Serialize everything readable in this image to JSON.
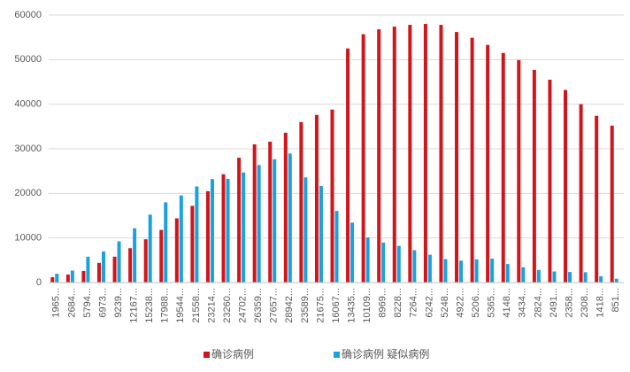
{
  "chart_data": {
    "type": "bar",
    "categories": [
      "1965...",
      "2684...",
      "5794...",
      "6973...",
      "9239...",
      "12167...",
      "15238...",
      "17988...",
      "19544...",
      "21558...",
      "23214...",
      "23260...",
      "24702...",
      "26359...",
      "27657...",
      "28942...",
      "23589...",
      "21675...",
      "16067...",
      "13435...",
      "10109...",
      "8969...",
      "8228...",
      "7264...",
      "6242...",
      "5248...",
      "4922...",
      "5206...",
      "5365...",
      "4148...",
      "3434...",
      "2824...",
      "2491...",
      "2358...",
      "2308...",
      "1418...",
      "851..."
    ],
    "series": [
      {
        "name": "确诊病例",
        "color": "#d0161b",
        "values": [
          1200,
          1800,
          2600,
          4400,
          5800,
          7700,
          9700,
          11800,
          14400,
          17200,
          20500,
          24300,
          28000,
          31000,
          31600,
          33600,
          36000,
          37600,
          38800,
          52500,
          55700,
          56800,
          57400,
          57800,
          58000,
          57800,
          56200,
          54900,
          53300,
          51500,
          49900,
          47700,
          45500,
          43200,
          40000,
          37400,
          35200
        ]
      },
      {
        "name": "确诊病例 疑似病例",
        "color": "#1aa1e0",
        "values": [
          1965,
          2684,
          5794,
          6973,
          9239,
          12167,
          15238,
          17988,
          19544,
          21558,
          23214,
          23260,
          24702,
          26359,
          27657,
          28942,
          23589,
          21675,
          16067,
          13435,
          10109,
          8969,
          8228,
          7264,
          6242,
          5248,
          4922,
          5206,
          5365,
          4148,
          3434,
          2824,
          2491,
          2358,
          2308,
          1418,
          851
        ]
      }
    ],
    "ylim": [
      0,
      60000
    ],
    "yticks": [
      0,
      10000,
      20000,
      30000,
      40000,
      50000,
      60000
    ],
    "grid": true,
    "legend": "bottom"
  }
}
